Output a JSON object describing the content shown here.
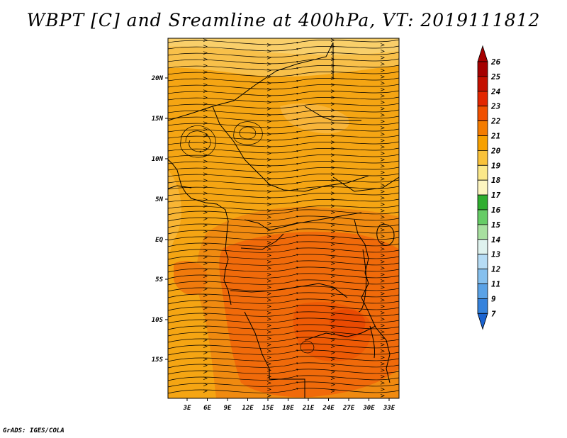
{
  "title": "WBPT [C] and Sreamline at 400hPa, VT: 2019111812",
  "credit": "GrADS: IGES/COLA",
  "map": {
    "lat_labels": [
      "20N",
      "15N",
      "10N",
      "5N",
      "EQ",
      "5S",
      "10S",
      "15S"
    ],
    "lon_labels": [
      "3E",
      "6E",
      "9E",
      "12E",
      "15E",
      "18E",
      "21E",
      "24E",
      "27E",
      "30E",
      "33E"
    ]
  },
  "colorbar": {
    "levels": [
      "26",
      "25",
      "24",
      "23",
      "22",
      "21",
      "20",
      "19",
      "18",
      "17",
      "16",
      "15",
      "14",
      "13",
      "12",
      "11",
      "9",
      "7"
    ],
    "colors": [
      "#a50000",
      "#c41000",
      "#e22600",
      "#f05000",
      "#f47c00",
      "#f6a000",
      "#f9c23a",
      "#fbe88a",
      "#fdf5c0",
      "#2fae2f",
      "#66cc66",
      "#a8e0a0",
      "#dff2ee",
      "#b6dcf5",
      "#86c0ee",
      "#5aa2e6",
      "#3582dc",
      "#1b63d0"
    ],
    "top_arrow_color": "#a50000",
    "bottom_arrow_color": "#1b63d0"
  }
}
